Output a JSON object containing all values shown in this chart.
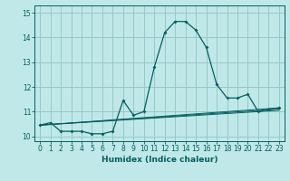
{
  "xlabel": "Humidex (Indice chaleur)",
  "ylabel": "",
  "bg_color": "#c0e8e8",
  "grid_color": "#98c8c8",
  "line_color": "#006060",
  "xlim": [
    -0.5,
    23.5
  ],
  "ylim": [
    9.8,
    15.3
  ],
  "xticks": [
    0,
    1,
    2,
    3,
    4,
    5,
    6,
    7,
    8,
    9,
    10,
    11,
    12,
    13,
    14,
    15,
    16,
    17,
    18,
    19,
    20,
    21,
    22,
    23
  ],
  "yticks": [
    10,
    11,
    12,
    13,
    14,
    15
  ],
  "series": [
    {
      "x": [
        0,
        1,
        2,
        3,
        4,
        5,
        6,
        7,
        8,
        9,
        10,
        11,
        12,
        13,
        14,
        15,
        16,
        17,
        18,
        19,
        20,
        21,
        22,
        23
      ],
      "y": [
        10.45,
        10.55,
        10.2,
        10.2,
        10.2,
        10.1,
        10.1,
        10.2,
        11.45,
        10.85,
        11.0,
        12.8,
        14.2,
        14.65,
        14.65,
        14.3,
        13.6,
        12.1,
        11.55,
        11.55,
        11.7,
        11.0,
        11.1,
        11.15
      ]
    },
    {
      "x": [
        0,
        23
      ],
      "y": [
        10.45,
        11.15
      ]
    },
    {
      "x": [
        0,
        23
      ],
      "y": [
        10.45,
        11.1
      ]
    },
    {
      "x": [
        0,
        23
      ],
      "y": [
        10.45,
        11.05
      ]
    }
  ]
}
